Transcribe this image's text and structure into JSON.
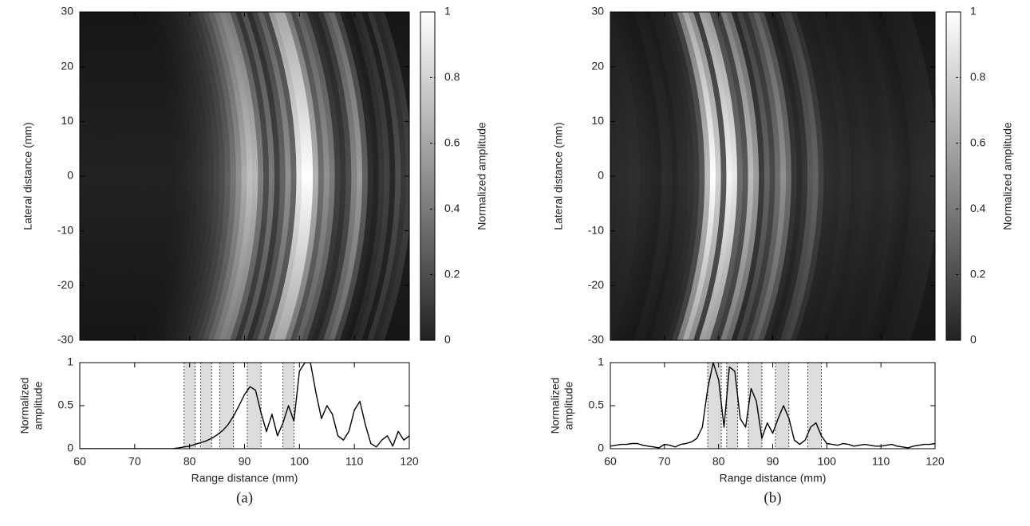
{
  "chart_data": [
    {
      "type": "heatmap",
      "xlim": [
        60,
        120
      ],
      "ylim": [
        -30,
        30
      ],
      "yticks": [
        -30,
        -20,
        -10,
        0,
        10,
        20,
        30
      ],
      "ylabel": "Lateral distance (mm)",
      "colorbar": {
        "label": "Normalized amplitude",
        "lim": [
          0,
          1
        ],
        "ticks": [
          0,
          0.2,
          0.4,
          0.6,
          0.8,
          1
        ],
        "colors": [
          "#222222",
          "#ffffff"
        ]
      }
    },
    {
      "type": "line",
      "color": "#000000",
      "xlim": [
        60,
        120
      ],
      "xticks": [
        60,
        70,
        80,
        90,
        100,
        110,
        120
      ],
      "ylim": [
        0,
        1
      ],
      "yticks": [
        0,
        0.5,
        1
      ],
      "xlabel": "Range distance (mm)",
      "ylabel": [
        "Normalized",
        "amplitude"
      ],
      "bands": [
        [
          79,
          81
        ],
        [
          82,
          84
        ],
        [
          85.5,
          88
        ],
        [
          90.5,
          93
        ],
        [
          97,
          99
        ]
      ],
      "band_color": "#dddddd",
      "caption": "(a)",
      "x": [
        60,
        61,
        62,
        63,
        64,
        65,
        66,
        67,
        68,
        69,
        70,
        71,
        72,
        73,
        74,
        75,
        76,
        77,
        78,
        79,
        80,
        81,
        82,
        83,
        84,
        85,
        86,
        87,
        88,
        89,
        90,
        91,
        92,
        93,
        94,
        95,
        96,
        97,
        98,
        99,
        100,
        101,
        102,
        103,
        104,
        105,
        106,
        107,
        108,
        109,
        110,
        111,
        112,
        113,
        114,
        115,
        116,
        117,
        118,
        119,
        120
      ],
      "values": [
        0,
        0,
        0,
        0,
        0,
        0,
        0,
        0,
        0,
        0,
        0,
        0,
        0,
        0,
        0,
        0,
        0,
        0,
        0.01,
        0.02,
        0.03,
        0.05,
        0.07,
        0.09,
        0.12,
        0.16,
        0.21,
        0.28,
        0.38,
        0.5,
        0.63,
        0.72,
        0.68,
        0.42,
        0.2,
        0.4,
        0.15,
        0.3,
        0.5,
        0.32,
        0.9,
        1,
        1,
        0.65,
        0.35,
        0.5,
        0.4,
        0.15,
        0.1,
        0.2,
        0.45,
        0.55,
        0.28,
        0.06,
        0.02,
        0.1,
        0.15,
        0.03,
        0.2,
        0.1,
        0.15
      ]
    },
    {
      "type": "heatmap",
      "xlim": [
        60,
        120
      ],
      "ylim": [
        -30,
        30
      ],
      "yticks": [
        -30,
        -20,
        -10,
        0,
        10,
        20,
        30
      ],
      "ylabel": "Lateral distance (mm)",
      "colorbar": {
        "label": "Normalized amplitude",
        "lim": [
          0,
          1
        ],
        "ticks": [
          0,
          0.2,
          0.4,
          0.6,
          0.8,
          1
        ],
        "colors": [
          "#222222",
          "#ffffff"
        ]
      }
    },
    {
      "type": "line",
      "color": "#000000",
      "xlim": [
        60,
        120
      ],
      "xticks": [
        60,
        70,
        80,
        90,
        100,
        110,
        120
      ],
      "ylim": [
        0,
        1
      ],
      "yticks": [
        0,
        0.5,
        1
      ],
      "xlabel": "Range distance (mm)",
      "ylabel": [
        "Normalized",
        "amplitude"
      ],
      "bands": [
        [
          78,
          80.5
        ],
        [
          81.5,
          83.5
        ],
        [
          85.5,
          88
        ],
        [
          90.5,
          93
        ],
        [
          96.5,
          99
        ]
      ],
      "band_color": "#dddddd",
      "caption": "(b)",
      "x": [
        60,
        61,
        62,
        63,
        64,
        65,
        66,
        67,
        68,
        69,
        70,
        71,
        72,
        73,
        74,
        75,
        76,
        77,
        78,
        79,
        80,
        81,
        82,
        83,
        84,
        85,
        86,
        87,
        88,
        89,
        90,
        91,
        92,
        93,
        94,
        95,
        96,
        97,
        98,
        99,
        100,
        101,
        102,
        103,
        104,
        105,
        106,
        107,
        108,
        109,
        110,
        111,
        112,
        113,
        114,
        115,
        116,
        117,
        118,
        119,
        120
      ],
      "values": [
        0.03,
        0.04,
        0.05,
        0.05,
        0.06,
        0.06,
        0.04,
        0.03,
        0.02,
        0.01,
        0.05,
        0.04,
        0.02,
        0.05,
        0.06,
        0.08,
        0.12,
        0.25,
        0.7,
        1,
        0.8,
        0.25,
        0.95,
        0.9,
        0.35,
        0.25,
        0.7,
        0.55,
        0.12,
        0.3,
        0.18,
        0.35,
        0.5,
        0.35,
        0.1,
        0.05,
        0.1,
        0.25,
        0.3,
        0.15,
        0.06,
        0.05,
        0.04,
        0.06,
        0.05,
        0.03,
        0.04,
        0.05,
        0.04,
        0.03,
        0.03,
        0.04,
        0.05,
        0.03,
        0.02,
        0.01,
        0.03,
        0.04,
        0.05,
        0.05,
        0.06
      ]
    }
  ]
}
